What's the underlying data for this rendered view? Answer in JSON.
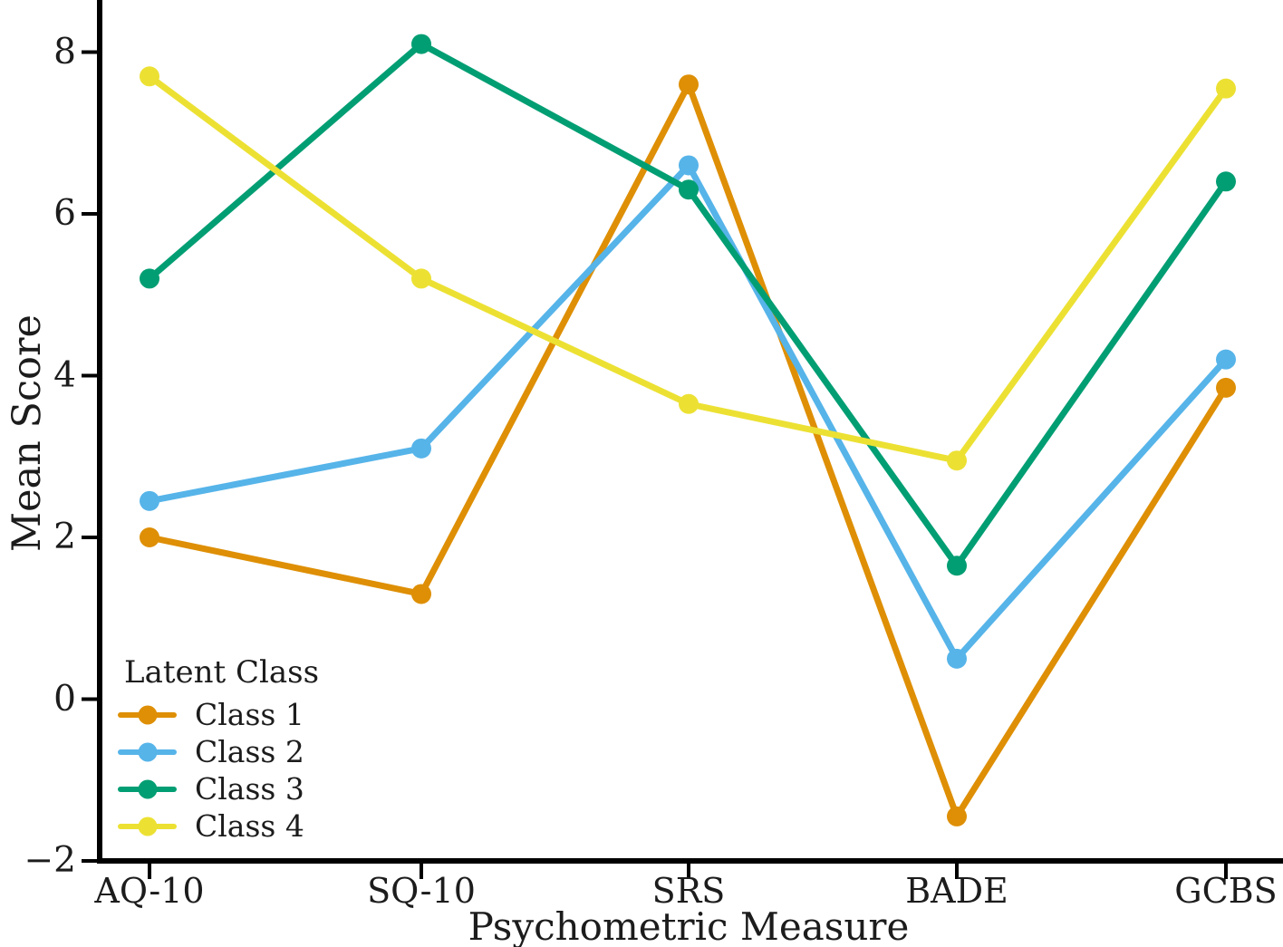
{
  "colors": {
    "background": "#ffffff",
    "axis": "#000000",
    "text": "#1c1c1c"
  },
  "chart_data": {
    "type": "line",
    "title": "",
    "xlabel": "Psychometric Measure",
    "ylabel": "Mean Score",
    "categories": [
      "AQ-10",
      "SQ-10",
      "SRS",
      "BADE",
      "GCBS"
    ],
    "series": [
      {
        "name": "Class 1",
        "color": "#de8f05",
        "values": [
          2.0,
          1.3,
          7.6,
          -1.45,
          3.85
        ]
      },
      {
        "name": "Class 2",
        "color": "#56b4e9",
        "values": [
          2.45,
          3.1,
          6.6,
          0.5,
          4.2
        ]
      },
      {
        "name": "Class 3",
        "color": "#029e73",
        "values": [
          5.2,
          8.1,
          6.3,
          1.65,
          6.4
        ]
      },
      {
        "name": "Class 4",
        "color": "#ece133",
        "values": [
          7.7,
          5.2,
          3.65,
          2.95,
          7.55
        ]
      }
    ],
    "legend": {
      "title": "Latent Class",
      "entries": [
        "Class 1",
        "Class 2",
        "Class 3",
        "Class 4"
      ],
      "position": "lower-left"
    },
    "y_ticks": {
      "values": [
        8,
        6,
        4,
        2,
        0,
        -2
      ],
      "labels": [
        "8",
        "6",
        "4",
        "2",
        "0",
        "−2"
      ]
    },
    "ylim": [
      -2,
      8.55
    ],
    "grid": false,
    "marker": "circle"
  }
}
